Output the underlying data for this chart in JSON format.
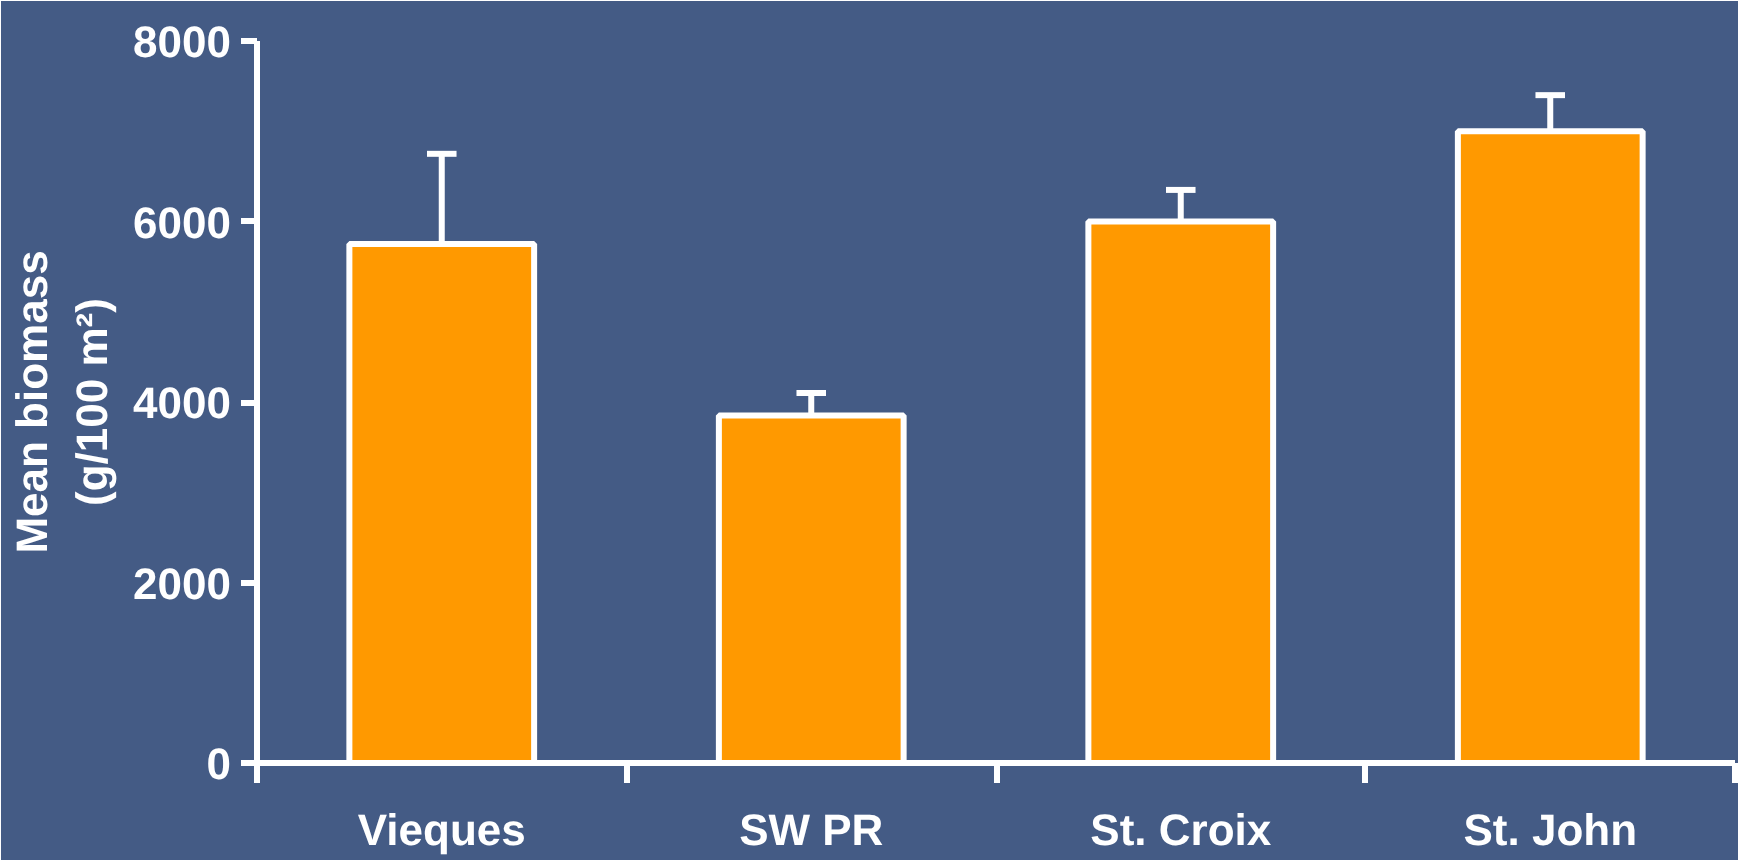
{
  "chart_data": {
    "type": "bar",
    "ylabel": "Mean biomass\n(g/100 m²)",
    "categories": [
      "Vieques",
      "SW PR",
      "St. Croix",
      "St. John"
    ],
    "values": [
      5750,
      3850,
      6000,
      7000
    ],
    "errors": [
      [
        5750,
        6750
      ],
      [
        3850,
        4100
      ],
      [
        6000,
        6350
      ],
      [
        7000,
        7400
      ]
    ],
    "color": "#ff9900",
    "ylim": [
      0,
      8000
    ],
    "yticks": [
      0,
      2000,
      4000,
      6000,
      8000
    ],
    "grid": false
  }
}
